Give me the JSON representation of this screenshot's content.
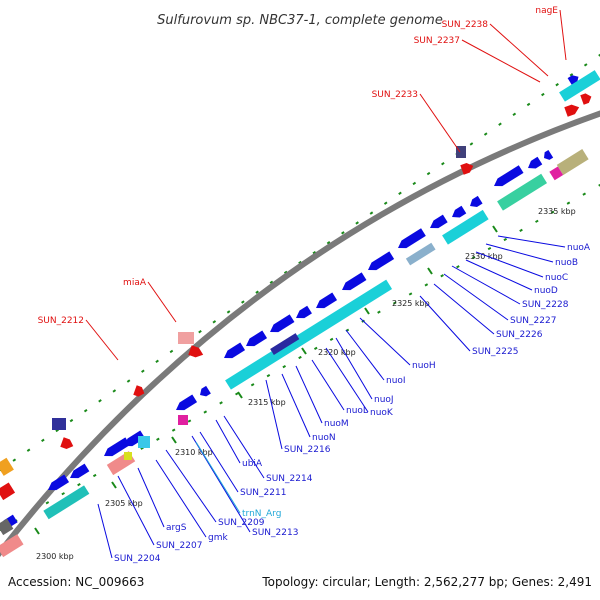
{
  "title": "Sulfurovum sp. NBC37-1, complete genome",
  "footer": {
    "accession": "Accession: NC_009663",
    "summary": "Topology: circular; Length: 2,562,277 bp; Genes: 2,491"
  },
  "colors": {
    "backbone": "#7a7a7a",
    "cds": "#0a0ae0",
    "rna": "#1ad0d8",
    "highlight": "#e01010",
    "tick": "#1a8a1a"
  },
  "kbp_ticks": [
    "2300 kbp",
    "2305 kbp",
    "2310 kbp",
    "2315 kbp",
    "2320 kbp",
    "2325 kbp",
    "2330 kbp",
    "2335 kbp"
  ],
  "blue_labels": [
    "nuoA",
    "nuoB",
    "nuoC",
    "nuoD",
    "SUN_2228",
    "SUN_2227",
    "SUN_2226",
    "SUN_2225",
    "nuoH",
    "nuoI",
    "nuoJ",
    "nuoK",
    "nuoL",
    "nuoM",
    "nuoN",
    "SUN_2216",
    "SUN_2214",
    "ubiA",
    "SUN_2211",
    "SUN_2213",
    "SUN_2209",
    "gmk",
    "argS",
    "SUN_2207",
    "SUN_2204"
  ],
  "cyan_labels": [
    "trnN_Arg"
  ],
  "red_labels": [
    "nagE",
    "SUN_2238",
    "SUN_2237",
    "SUN_2233",
    "miaA",
    "SUN_2212"
  ]
}
